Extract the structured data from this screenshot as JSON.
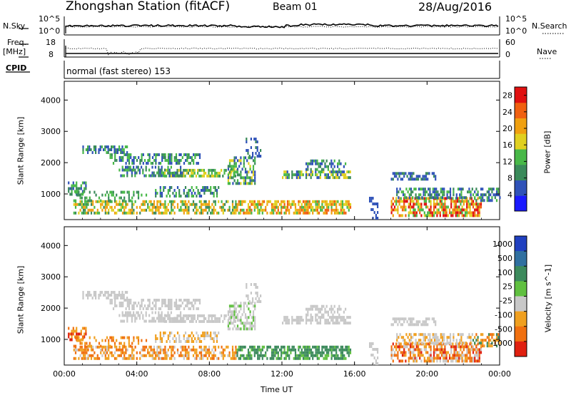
{
  "header": {
    "station": "Zhongshan Station (fitACF)",
    "beam": "Beam 01",
    "date": "28/Aug/2016"
  },
  "strip_labels": {
    "nsky": "N.Sky",
    "nsearch": "N.Search",
    "freq": "Freq.",
    "mhz": "[MHz]",
    "nave": "Nave",
    "cpid": "CPID",
    "nsky_top": "10^5",
    "nsky_bot": "10^0",
    "nsearch_top": "10^5",
    "nsearch_bot": "10^0",
    "freq_top": "18",
    "freq_bot": "8",
    "nave_top": "60",
    "nave_bot": "0",
    "mode": "normal (fast stereo) 153"
  },
  "chart_data": [
    {
      "type": "heatmap",
      "name": "power",
      "xlabel": "Time UT",
      "ylabel": "Slant Range [km]",
      "colorbar_label": "Power [dB]",
      "x_ticks": [
        "00:00",
        "04:00",
        "08:00",
        "12:00",
        "16:00",
        "20:00",
        "00:00"
      ],
      "xlim_hours": [
        0,
        24
      ],
      "y_ticks": [
        1000,
        2000,
        3000,
        4000
      ],
      "ylim_km": [
        180,
        4600
      ],
      "colorbar_ticks": [
        "4",
        "8",
        "12",
        "16",
        "20",
        "24",
        "28"
      ],
      "colorbar_range": [
        0,
        30
      ],
      "colors": [
        "#1a1aff",
        "#2f52b8",
        "#3a8a5a",
        "#48b848",
        "#e0d020",
        "#f0a010",
        "#f06010",
        "#e01010"
      ]
    },
    {
      "type": "heatmap",
      "name": "velocity",
      "xlabel": "Time UT",
      "ylabel": "Slant Range [km]",
      "colorbar_label": "Velocity [m s^-1]",
      "x_ticks": [
        "00:00",
        "04:00",
        "08:00",
        "12:00",
        "16:00",
        "20:00",
        "00:00"
      ],
      "xlim_hours": [
        0,
        24
      ],
      "y_ticks": [
        1000,
        2000,
        3000,
        4000
      ],
      "ylim_km": [
        180,
        4600
      ],
      "colorbar_ticks": [
        "1000",
        "500",
        "100",
        "25",
        "-25",
        "-100",
        "-500",
        "-1000"
      ],
      "colors": [
        "#2040c0",
        "#3070a0",
        "#3c8a5c",
        "#60c040",
        "#c8c8c8",
        "#f0a020",
        "#f07010",
        "#e02010"
      ]
    }
  ]
}
